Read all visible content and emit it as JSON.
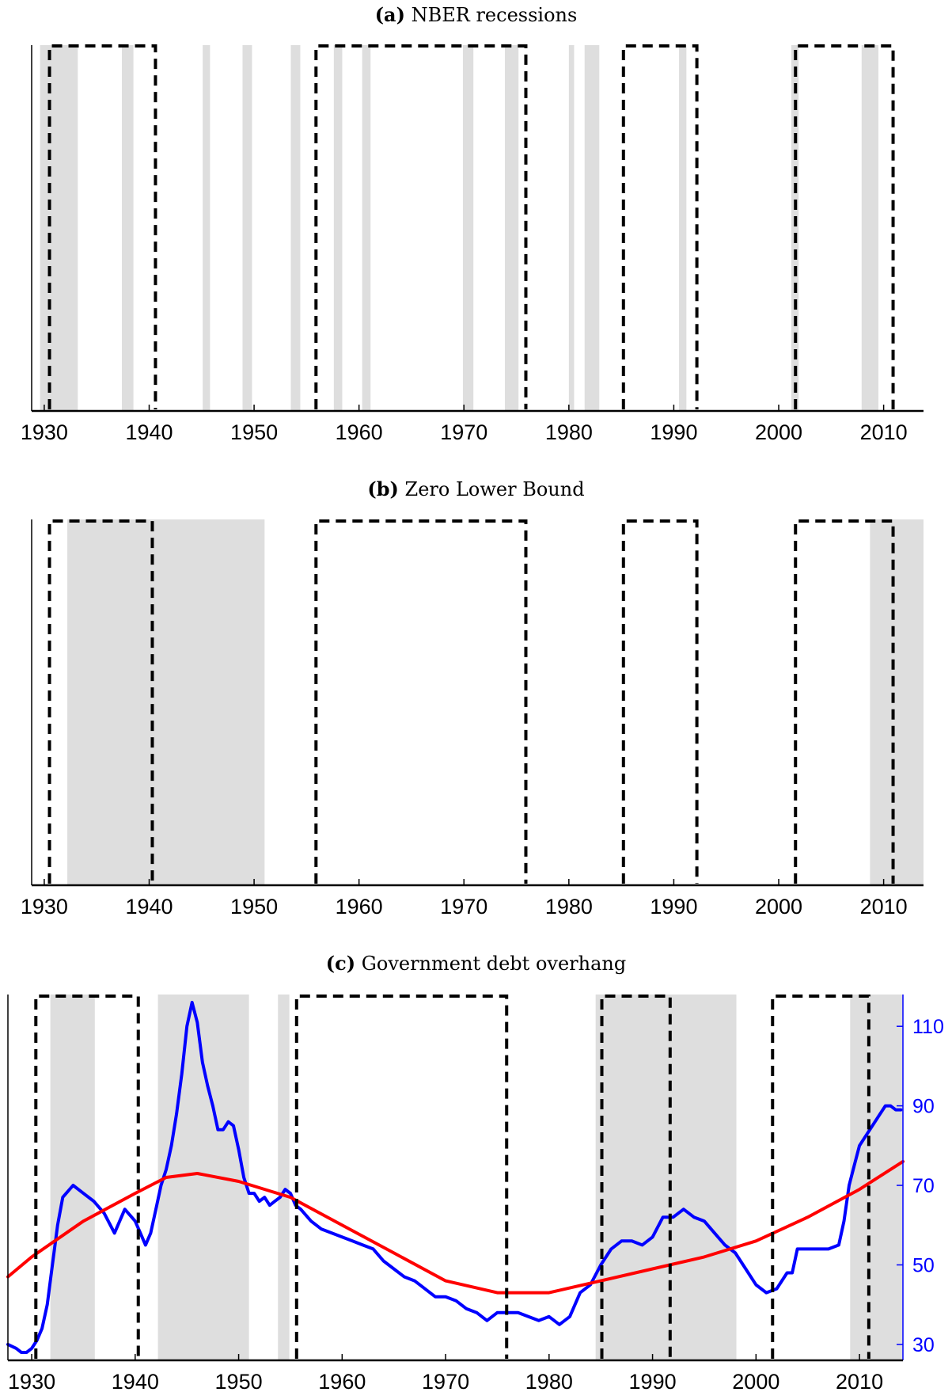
{
  "chart_data": [
    {
      "type": "line",
      "panel_label": "(a)",
      "title": "NBER recessions",
      "xlim": [
        1928.8,
        2013.8
      ],
      "xticks": [
        1930,
        1940,
        1950,
        1960,
        1970,
        1980,
        1990,
        2000,
        2010
      ],
      "shaded_periods": [
        [
          1929.6,
          1933.2
        ],
        [
          1937.4,
          1938.5
        ],
        [
          1945.1,
          1945.8
        ],
        [
          1948.9,
          1949.8
        ],
        [
          1953.5,
          1954.4
        ],
        [
          1957.6,
          1958.4
        ],
        [
          1960.3,
          1961.1
        ],
        [
          1969.9,
          1970.9
        ],
        [
          1973.9,
          1975.2
        ],
        [
          1980.0,
          1980.5
        ],
        [
          1981.5,
          1982.9
        ],
        [
          1990.5,
          1991.2
        ],
        [
          2001.2,
          2001.9
        ],
        [
          2007.9,
          2009.5
        ]
      ],
      "dashed_boxes": [
        [
          1930.5,
          1940.6
        ],
        [
          1955.9,
          1975.9
        ],
        [
          1985.2,
          1992.2
        ],
        [
          2001.6,
          2010.9
        ]
      ]
    },
    {
      "type": "line",
      "panel_label": "(b)",
      "title": "Zero Lower Bound",
      "xlim": [
        1928.8,
        2013.8
      ],
      "xticks": [
        1930,
        1940,
        1950,
        1960,
        1970,
        1980,
        1990,
        2000,
        2010
      ],
      "shaded_periods": [
        [
          1932.2,
          1951.0
        ],
        [
          2008.7,
          2013.8
        ]
      ],
      "dashed_boxes": [
        [
          1930.5,
          1940.3
        ],
        [
          1955.9,
          1975.9
        ],
        [
          1985.2,
          1992.2
        ],
        [
          2001.6,
          2010.9
        ]
      ]
    },
    {
      "type": "line",
      "panel_label": "(c)",
      "title": "Government debt overhang",
      "xlim": [
        1927.7,
        2014.2
      ],
      "ylim_right": [
        26,
        118
      ],
      "xticks": [
        1930,
        1940,
        1950,
        1960,
        1970,
        1980,
        1990,
        2000,
        2010
      ],
      "yticks_right": [
        30,
        50,
        70,
        90,
        110
      ],
      "shaded_periods": [
        [
          1931.8,
          1936.1
        ],
        [
          1942.2,
          1951.0
        ],
        [
          1953.8,
          1954.9
        ],
        [
          1984.5,
          1998.1
        ],
        [
          2009.1,
          2014.2
        ]
      ],
      "dashed_boxes": [
        [
          1930.4,
          1940.3
        ],
        [
          1955.6,
          1975.9
        ],
        [
          1985.1,
          1991.7
        ],
        [
          2001.6,
          2010.9
        ]
      ],
      "series": [
        {
          "color": "#0000ff",
          "x": [
            1927.7,
            1928.5,
            1929.0,
            1929.5,
            1930.0,
            1930.5,
            1931.0,
            1931.5,
            1932.0,
            1932.5,
            1933.0,
            1934.0,
            1935.0,
            1936.0,
            1937.0,
            1938.0,
            1939.0,
            1940.0,
            1940.5,
            1941.0,
            1941.5,
            1942.0,
            1942.5,
            1943.0,
            1943.5,
            1944.0,
            1944.5,
            1945.0,
            1945.5,
            1946.0,
            1946.5,
            1947.0,
            1947.5,
            1948.0,
            1948.5,
            1949.0,
            1949.5,
            1950.0,
            1950.5,
            1951.0,
            1951.5,
            1952.0,
            1952.5,
            1953.0,
            1953.5,
            1954.0,
            1954.5,
            1955.0,
            1955.5,
            1956.0,
            1957.0,
            1958.0,
            1959.0,
            1960.0,
            1961.0,
            1962.0,
            1963.0,
            1964.0,
            1965.0,
            1966.0,
            1967.0,
            1968.0,
            1969.0,
            1970.0,
            1971.0,
            1972.0,
            1973.0,
            1974.0,
            1975.0,
            1976.0,
            1977.0,
            1978.0,
            1979.0,
            1980.0,
            1981.0,
            1982.0,
            1983.0,
            1984.0,
            1985.0,
            1986.0,
            1987.0,
            1988.0,
            1989.0,
            1990.0,
            1991.0,
            1992.0,
            1993.0,
            1994.0,
            1995.0,
            1996.0,
            1997.0,
            1998.0,
            1999.0,
            2000.0,
            2001.0,
            2002.0,
            2003.0,
            2003.5,
            2004.0,
            2005.0,
            2006.0,
            2007.0,
            2008.0,
            2008.5,
            2009.0,
            2009.5,
            2010.0,
            2010.5,
            2011.0,
            2011.5,
            2012.0,
            2012.5,
            2013.0,
            2013.5,
            2014.0
          ],
          "values": [
            30,
            29,
            28,
            28,
            29,
            31,
            34,
            40,
            50,
            60,
            67,
            70,
            68,
            66,
            63,
            58,
            64,
            61,
            58,
            55,
            58,
            64,
            70,
            74,
            80,
            88,
            98,
            110,
            116,
            111,
            101,
            95,
            90,
            84,
            84,
            86,
            85,
            79,
            72,
            68,
            68,
            66,
            67,
            65,
            66,
            67,
            69,
            68,
            65,
            64,
            61,
            59,
            58,
            57,
            56,
            55,
            54,
            51,
            49,
            47,
            46,
            44,
            42,
            42,
            41,
            39,
            38,
            36,
            38,
            38,
            38,
            37,
            36,
            37,
            35,
            37,
            43,
            45,
            50,
            54,
            56,
            56,
            55,
            57,
            62,
            62,
            64,
            62,
            61,
            58,
            55,
            53,
            49,
            45,
            43,
            44,
            48,
            48,
            54,
            54,
            54,
            54,
            55,
            61,
            70,
            75,
            80,
            82,
            84,
            86,
            88,
            90,
            90,
            89,
            89
          ]
        },
        {
          "color": "#ff0000",
          "x": [
            1927.7,
            1930.0,
            1935.0,
            1940.0,
            1943.0,
            1946.0,
            1950.0,
            1955.0,
            1960.0,
            1965.0,
            1970.0,
            1975.0,
            1978.0,
            1980.0,
            1985.0,
            1990.0,
            1995.0,
            2000.0,
            2005.0,
            2010.0,
            2014.2
          ],
          "values": [
            47,
            52,
            61,
            68,
            72,
            73,
            71,
            67,
            60,
            53,
            46,
            43,
            43,
            43,
            46,
            49,
            52,
            56,
            62,
            69,
            76
          ]
        }
      ]
    }
  ]
}
